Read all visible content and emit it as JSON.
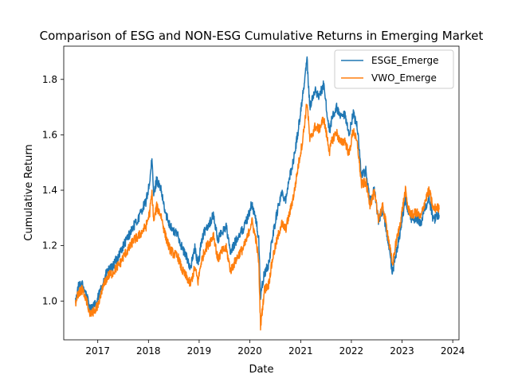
{
  "chart_data": {
    "type": "line",
    "title": "Comparison of ESG and NON-ESG Cumulative Returns in Emerging Market",
    "xlabel": "Date",
    "ylabel": "Cumulative Return",
    "xlim": [
      "2016-05-01",
      "2024-02-15"
    ],
    "ylim": [
      0.86,
      1.92
    ],
    "x_ticks": [
      {
        "date": "2017-01-01",
        "label": "2017"
      },
      {
        "date": "2018-01-01",
        "label": "2018"
      },
      {
        "date": "2019-01-01",
        "label": "2019"
      },
      {
        "date": "2020-01-01",
        "label": "2020"
      },
      {
        "date": "2021-01-01",
        "label": "2021"
      },
      {
        "date": "2022-01-01",
        "label": "2022"
      },
      {
        "date": "2023-01-01",
        "label": "2023"
      },
      {
        "date": "2024-01-01",
        "label": "2024"
      }
    ],
    "y_ticks": [
      1.0,
      1.2,
      1.4,
      1.6,
      1.8
    ],
    "y_tick_labels": [
      "1.0",
      "1.2",
      "1.4",
      "1.6",
      "1.8"
    ],
    "grid": false,
    "legend_position": "top-right",
    "series": [
      {
        "name": "ESGE_Emerge",
        "color": "#1f77b4",
        "points": [
          [
            "2016-07-25",
            1.0
          ],
          [
            "2016-08-15",
            1.05
          ],
          [
            "2016-09-08",
            1.06
          ],
          [
            "2016-10-01",
            1.04
          ],
          [
            "2016-11-09",
            0.97
          ],
          [
            "2016-12-20",
            0.99
          ],
          [
            "2017-01-15",
            1.03
          ],
          [
            "2017-02-15",
            1.08
          ],
          [
            "2017-03-15",
            1.11
          ],
          [
            "2017-04-15",
            1.12
          ],
          [
            "2017-05-15",
            1.15
          ],
          [
            "2017-06-15",
            1.18
          ],
          [
            "2017-07-15",
            1.21
          ],
          [
            "2017-08-15",
            1.24
          ],
          [
            "2017-09-15",
            1.27
          ],
          [
            "2017-10-15",
            1.29
          ],
          [
            "2017-11-15",
            1.33
          ],
          [
            "2017-12-15",
            1.36
          ],
          [
            "2018-01-10",
            1.43
          ],
          [
            "2018-01-26",
            1.51
          ],
          [
            "2018-02-08",
            1.38
          ],
          [
            "2018-03-01",
            1.44
          ],
          [
            "2018-04-01",
            1.4
          ],
          [
            "2018-05-01",
            1.32
          ],
          [
            "2018-06-01",
            1.28
          ],
          [
            "2018-07-01",
            1.25
          ],
          [
            "2018-08-01",
            1.24
          ],
          [
            "2018-09-01",
            1.19
          ],
          [
            "2018-10-10",
            1.15
          ],
          [
            "2018-10-30",
            1.12
          ],
          [
            "2018-12-01",
            1.19
          ],
          [
            "2018-12-24",
            1.13
          ],
          [
            "2019-01-15",
            1.21
          ],
          [
            "2019-02-15",
            1.26
          ],
          [
            "2019-03-15",
            1.28
          ],
          [
            "2019-04-15",
            1.31
          ],
          [
            "2019-05-15",
            1.22
          ],
          [
            "2019-06-15",
            1.25
          ],
          [
            "2019-07-15",
            1.27
          ],
          [
            "2019-08-15",
            1.17
          ],
          [
            "2019-09-15",
            1.21
          ],
          [
            "2019-10-15",
            1.24
          ],
          [
            "2019-11-15",
            1.26
          ],
          [
            "2019-12-15",
            1.3
          ],
          [
            "2020-01-15",
            1.35
          ],
          [
            "2020-02-15",
            1.29
          ],
          [
            "2020-03-05",
            1.22
          ],
          [
            "2020-03-18",
            1.02
          ],
          [
            "2020-04-15",
            1.1
          ],
          [
            "2020-05-15",
            1.13
          ],
          [
            "2020-06-15",
            1.24
          ],
          [
            "2020-07-15",
            1.32
          ],
          [
            "2020-08-15",
            1.39
          ],
          [
            "2020-09-15",
            1.37
          ],
          [
            "2020-10-15",
            1.45
          ],
          [
            "2020-11-15",
            1.52
          ],
          [
            "2020-12-15",
            1.62
          ],
          [
            "2021-01-15",
            1.74
          ],
          [
            "2021-02-16",
            1.87
          ],
          [
            "2021-03-08",
            1.7
          ],
          [
            "2021-04-15",
            1.76
          ],
          [
            "2021-05-15",
            1.74
          ],
          [
            "2021-06-15",
            1.78
          ],
          [
            "2021-07-28",
            1.61
          ],
          [
            "2021-08-15",
            1.66
          ],
          [
            "2021-09-15",
            1.7
          ],
          [
            "2021-10-15",
            1.66
          ],
          [
            "2021-11-15",
            1.67
          ],
          [
            "2021-12-15",
            1.6
          ],
          [
            "2022-01-15",
            1.68
          ],
          [
            "2022-02-15",
            1.62
          ],
          [
            "2022-03-15",
            1.45
          ],
          [
            "2022-04-15",
            1.47
          ],
          [
            "2022-05-15",
            1.36
          ],
          [
            "2022-06-15",
            1.4
          ],
          [
            "2022-07-15",
            1.29
          ],
          [
            "2022-08-15",
            1.33
          ],
          [
            "2022-09-15",
            1.24
          ],
          [
            "2022-10-24",
            1.1
          ],
          [
            "2022-11-15",
            1.16
          ],
          [
            "2022-12-15",
            1.24
          ],
          [
            "2023-01-25",
            1.37
          ],
          [
            "2023-02-15",
            1.32
          ],
          [
            "2023-03-15",
            1.29
          ],
          [
            "2023-04-15",
            1.3
          ],
          [
            "2023-05-15",
            1.28
          ],
          [
            "2023-06-15",
            1.34
          ],
          [
            "2023-07-15",
            1.37
          ],
          [
            "2023-08-15",
            1.29
          ],
          [
            "2023-09-10",
            1.31
          ],
          [
            "2023-09-25",
            1.31
          ]
        ]
      },
      {
        "name": "VWO_Emerge",
        "color": "#ff7f0e",
        "points": [
          [
            "2016-07-25",
            0.99
          ],
          [
            "2016-08-15",
            1.03
          ],
          [
            "2016-09-08",
            1.04
          ],
          [
            "2016-10-01",
            1.02
          ],
          [
            "2016-11-09",
            0.95
          ],
          [
            "2016-12-20",
            0.97
          ],
          [
            "2017-01-15",
            1.01
          ],
          [
            "2017-02-15",
            1.06
          ],
          [
            "2017-03-15",
            1.09
          ],
          [
            "2017-04-15",
            1.1
          ],
          [
            "2017-05-15",
            1.12
          ],
          [
            "2017-06-15",
            1.14
          ],
          [
            "2017-07-15",
            1.17
          ],
          [
            "2017-08-15",
            1.19
          ],
          [
            "2017-09-15",
            1.22
          ],
          [
            "2017-10-15",
            1.23
          ],
          [
            "2017-11-15",
            1.25
          ],
          [
            "2017-12-15",
            1.27
          ],
          [
            "2018-01-10",
            1.32
          ],
          [
            "2018-01-26",
            1.39
          ],
          [
            "2018-02-08",
            1.29
          ],
          [
            "2018-03-01",
            1.34
          ],
          [
            "2018-04-01",
            1.31
          ],
          [
            "2018-05-01",
            1.24
          ],
          [
            "2018-06-01",
            1.19
          ],
          [
            "2018-07-01",
            1.17
          ],
          [
            "2018-08-01",
            1.16
          ],
          [
            "2018-09-01",
            1.11
          ],
          [
            "2018-10-10",
            1.08
          ],
          [
            "2018-10-30",
            1.06
          ],
          [
            "2018-12-01",
            1.12
          ],
          [
            "2018-12-24",
            1.07
          ],
          [
            "2019-01-15",
            1.14
          ],
          [
            "2019-02-15",
            1.19
          ],
          [
            "2019-03-15",
            1.21
          ],
          [
            "2019-04-15",
            1.24
          ],
          [
            "2019-05-15",
            1.15
          ],
          [
            "2019-06-15",
            1.18
          ],
          [
            "2019-07-15",
            1.19
          ],
          [
            "2019-08-15",
            1.11
          ],
          [
            "2019-09-15",
            1.14
          ],
          [
            "2019-10-15",
            1.17
          ],
          [
            "2019-11-15",
            1.19
          ],
          [
            "2019-12-15",
            1.23
          ],
          [
            "2020-01-15",
            1.29
          ],
          [
            "2020-02-15",
            1.22
          ],
          [
            "2020-03-05",
            1.14
          ],
          [
            "2020-03-18",
            0.91
          ],
          [
            "2020-04-15",
            1.04
          ],
          [
            "2020-05-15",
            1.06
          ],
          [
            "2020-06-15",
            1.16
          ],
          [
            "2020-07-15",
            1.22
          ],
          [
            "2020-08-15",
            1.28
          ],
          [
            "2020-09-15",
            1.26
          ],
          [
            "2020-10-15",
            1.32
          ],
          [
            "2020-11-15",
            1.39
          ],
          [
            "2020-12-15",
            1.49
          ],
          [
            "2021-01-15",
            1.58
          ],
          [
            "2021-02-16",
            1.72
          ],
          [
            "2021-03-08",
            1.58
          ],
          [
            "2021-04-15",
            1.63
          ],
          [
            "2021-05-15",
            1.62
          ],
          [
            "2021-06-15",
            1.66
          ],
          [
            "2021-07-28",
            1.54
          ],
          [
            "2021-08-15",
            1.58
          ],
          [
            "2021-09-15",
            1.61
          ],
          [
            "2021-10-15",
            1.57
          ],
          [
            "2021-11-15",
            1.58
          ],
          [
            "2021-12-15",
            1.53
          ],
          [
            "2022-01-15",
            1.62
          ],
          [
            "2022-02-15",
            1.56
          ],
          [
            "2022-03-15",
            1.42
          ],
          [
            "2022-04-15",
            1.43
          ],
          [
            "2022-05-15",
            1.35
          ],
          [
            "2022-06-15",
            1.39
          ],
          [
            "2022-07-15",
            1.3
          ],
          [
            "2022-08-15",
            1.34
          ],
          [
            "2022-09-15",
            1.26
          ],
          [
            "2022-10-24",
            1.13
          ],
          [
            "2022-11-15",
            1.2
          ],
          [
            "2022-12-15",
            1.27
          ],
          [
            "2023-01-25",
            1.4
          ],
          [
            "2023-02-15",
            1.33
          ],
          [
            "2023-03-15",
            1.31
          ],
          [
            "2023-04-15",
            1.32
          ],
          [
            "2023-05-15",
            1.3
          ],
          [
            "2023-06-15",
            1.36
          ],
          [
            "2023-07-15",
            1.4
          ],
          [
            "2023-08-15",
            1.33
          ],
          [
            "2023-09-10",
            1.34
          ],
          [
            "2023-09-25",
            1.33
          ]
        ]
      }
    ]
  }
}
